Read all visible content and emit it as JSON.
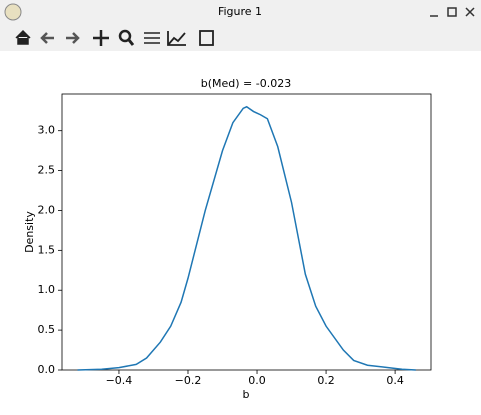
{
  "window": {
    "title": "Figure 1"
  },
  "chart_data": {
    "type": "line",
    "title": "b(Med) = -0.023",
    "x_label": "b",
    "y_label": "Density",
    "x": [
      -0.52,
      -0.45,
      -0.4,
      -0.35,
      -0.32,
      -0.28,
      -0.25,
      -0.22,
      -0.2,
      -0.15,
      -0.1,
      -0.07,
      -0.04,
      -0.03,
      -0.01,
      0.01,
      0.03,
      0.06,
      0.1,
      0.14,
      0.17,
      0.2,
      0.25,
      0.28,
      0.32,
      0.38,
      0.42,
      0.46
    ],
    "values": [
      0,
      0.01,
      0.03,
      0.07,
      0.15,
      0.35,
      0.55,
      0.85,
      1.15,
      2.0,
      2.75,
      3.1,
      3.28,
      3.3,
      3.24,
      3.2,
      3.15,
      2.8,
      2.1,
      1.2,
      0.8,
      0.55,
      0.25,
      0.12,
      0.06,
      0.03,
      0.01,
      0
    ],
    "color": "#1f77b4",
    "xlim": [
      -0.565,
      0.504
    ],
    "xticks": [
      {
        "value": -0.4,
        "label": "−0.4"
      },
      {
        "value": -0.2,
        "label": "−0.2"
      },
      {
        "value": 0,
        "label": "0.0"
      },
      {
        "value": 0.2,
        "label": "0.2"
      },
      {
        "value": 0.4,
        "label": "0.4"
      }
    ],
    "ylim": [
      0,
      3.46
    ],
    "yticks": [
      {
        "value": 0,
        "label": "0.0"
      },
      {
        "value": 0.5,
        "label": "0.5"
      },
      {
        "value": 1,
        "label": "1.0"
      },
      {
        "value": 1.5,
        "label": "1.5"
      },
      {
        "value": 2,
        "label": "2.0"
      },
      {
        "value": 2.5,
        "label": "2.5"
      },
      {
        "value": 3,
        "label": "3.0"
      }
    ]
  }
}
